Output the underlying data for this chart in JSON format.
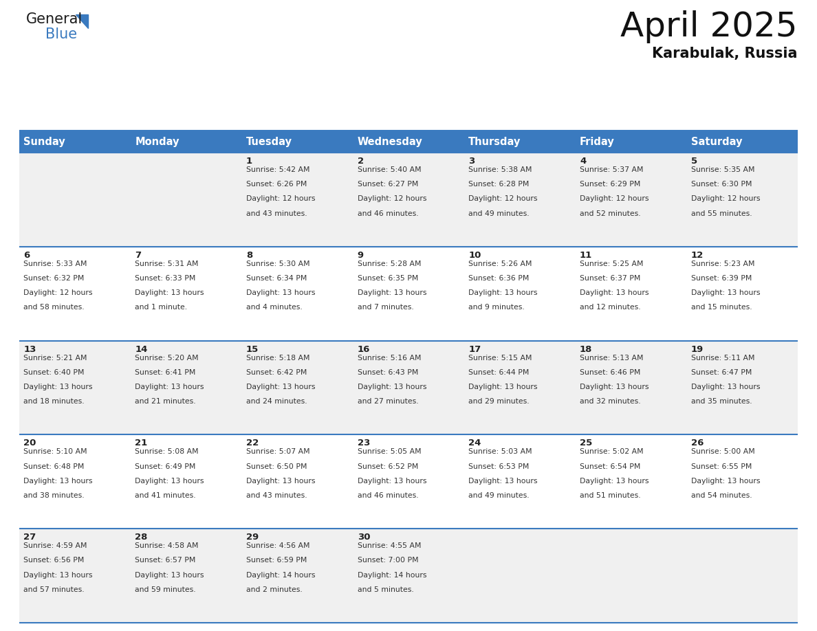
{
  "title": "April 2025",
  "subtitle": "Karabulak, Russia",
  "header_color": "#3a7abf",
  "header_text_color": "#ffffff",
  "cell_bg_odd": "#f0f0f0",
  "cell_bg_even": "#ffffff",
  "day_number_color": "#222222",
  "text_color": "#333333",
  "border_color": "#3a7abf",
  "weekdays": [
    "Sunday",
    "Monday",
    "Tuesday",
    "Wednesday",
    "Thursday",
    "Friday",
    "Saturday"
  ],
  "days": [
    {
      "day": 1,
      "col": 2,
      "row": 0,
      "sunrise": "5:42 AM",
      "sunset": "6:26 PM",
      "daylight_h": "12 hours",
      "daylight_m": "43 minutes."
    },
    {
      "day": 2,
      "col": 3,
      "row": 0,
      "sunrise": "5:40 AM",
      "sunset": "6:27 PM",
      "daylight_h": "12 hours",
      "daylight_m": "46 minutes."
    },
    {
      "day": 3,
      "col": 4,
      "row": 0,
      "sunrise": "5:38 AM",
      "sunset": "6:28 PM",
      "daylight_h": "12 hours",
      "daylight_m": "49 minutes."
    },
    {
      "day": 4,
      "col": 5,
      "row": 0,
      "sunrise": "5:37 AM",
      "sunset": "6:29 PM",
      "daylight_h": "12 hours",
      "daylight_m": "52 minutes."
    },
    {
      "day": 5,
      "col": 6,
      "row": 0,
      "sunrise": "5:35 AM",
      "sunset": "6:30 PM",
      "daylight_h": "12 hours",
      "daylight_m": "55 minutes."
    },
    {
      "day": 6,
      "col": 0,
      "row": 1,
      "sunrise": "5:33 AM",
      "sunset": "6:32 PM",
      "daylight_h": "12 hours",
      "daylight_m": "58 minutes."
    },
    {
      "day": 7,
      "col": 1,
      "row": 1,
      "sunrise": "5:31 AM",
      "sunset": "6:33 PM",
      "daylight_h": "13 hours",
      "daylight_m": "1 minute."
    },
    {
      "day": 8,
      "col": 2,
      "row": 1,
      "sunrise": "5:30 AM",
      "sunset": "6:34 PM",
      "daylight_h": "13 hours",
      "daylight_m": "4 minutes."
    },
    {
      "day": 9,
      "col": 3,
      "row": 1,
      "sunrise": "5:28 AM",
      "sunset": "6:35 PM",
      "daylight_h": "13 hours",
      "daylight_m": "7 minutes."
    },
    {
      "day": 10,
      "col": 4,
      "row": 1,
      "sunrise": "5:26 AM",
      "sunset": "6:36 PM",
      "daylight_h": "13 hours",
      "daylight_m": "9 minutes."
    },
    {
      "day": 11,
      "col": 5,
      "row": 1,
      "sunrise": "5:25 AM",
      "sunset": "6:37 PM",
      "daylight_h": "13 hours",
      "daylight_m": "12 minutes."
    },
    {
      "day": 12,
      "col": 6,
      "row": 1,
      "sunrise": "5:23 AM",
      "sunset": "6:39 PM",
      "daylight_h": "13 hours",
      "daylight_m": "15 minutes."
    },
    {
      "day": 13,
      "col": 0,
      "row": 2,
      "sunrise": "5:21 AM",
      "sunset": "6:40 PM",
      "daylight_h": "13 hours",
      "daylight_m": "18 minutes."
    },
    {
      "day": 14,
      "col": 1,
      "row": 2,
      "sunrise": "5:20 AM",
      "sunset": "6:41 PM",
      "daylight_h": "13 hours",
      "daylight_m": "21 minutes."
    },
    {
      "day": 15,
      "col": 2,
      "row": 2,
      "sunrise": "5:18 AM",
      "sunset": "6:42 PM",
      "daylight_h": "13 hours",
      "daylight_m": "24 minutes."
    },
    {
      "day": 16,
      "col": 3,
      "row": 2,
      "sunrise": "5:16 AM",
      "sunset": "6:43 PM",
      "daylight_h": "13 hours",
      "daylight_m": "27 minutes."
    },
    {
      "day": 17,
      "col": 4,
      "row": 2,
      "sunrise": "5:15 AM",
      "sunset": "6:44 PM",
      "daylight_h": "13 hours",
      "daylight_m": "29 minutes."
    },
    {
      "day": 18,
      "col": 5,
      "row": 2,
      "sunrise": "5:13 AM",
      "sunset": "6:46 PM",
      "daylight_h": "13 hours",
      "daylight_m": "32 minutes."
    },
    {
      "day": 19,
      "col": 6,
      "row": 2,
      "sunrise": "5:11 AM",
      "sunset": "6:47 PM",
      "daylight_h": "13 hours",
      "daylight_m": "35 minutes."
    },
    {
      "day": 20,
      "col": 0,
      "row": 3,
      "sunrise": "5:10 AM",
      "sunset": "6:48 PM",
      "daylight_h": "13 hours",
      "daylight_m": "38 minutes."
    },
    {
      "day": 21,
      "col": 1,
      "row": 3,
      "sunrise": "5:08 AM",
      "sunset": "6:49 PM",
      "daylight_h": "13 hours",
      "daylight_m": "41 minutes."
    },
    {
      "day": 22,
      "col": 2,
      "row": 3,
      "sunrise": "5:07 AM",
      "sunset": "6:50 PM",
      "daylight_h": "13 hours",
      "daylight_m": "43 minutes."
    },
    {
      "day": 23,
      "col": 3,
      "row": 3,
      "sunrise": "5:05 AM",
      "sunset": "6:52 PM",
      "daylight_h": "13 hours",
      "daylight_m": "46 minutes."
    },
    {
      "day": 24,
      "col": 4,
      "row": 3,
      "sunrise": "5:03 AM",
      "sunset": "6:53 PM",
      "daylight_h": "13 hours",
      "daylight_m": "49 minutes."
    },
    {
      "day": 25,
      "col": 5,
      "row": 3,
      "sunrise": "5:02 AM",
      "sunset": "6:54 PM",
      "daylight_h": "13 hours",
      "daylight_m": "51 minutes."
    },
    {
      "day": 26,
      "col": 6,
      "row": 3,
      "sunrise": "5:00 AM",
      "sunset": "6:55 PM",
      "daylight_h": "13 hours",
      "daylight_m": "54 minutes."
    },
    {
      "day": 27,
      "col": 0,
      "row": 4,
      "sunrise": "4:59 AM",
      "sunset": "6:56 PM",
      "daylight_h": "13 hours",
      "daylight_m": "57 minutes."
    },
    {
      "day": 28,
      "col": 1,
      "row": 4,
      "sunrise": "4:58 AM",
      "sunset": "6:57 PM",
      "daylight_h": "13 hours",
      "daylight_m": "59 minutes."
    },
    {
      "day": 29,
      "col": 2,
      "row": 4,
      "sunrise": "4:56 AM",
      "sunset": "6:59 PM",
      "daylight_h": "14 hours",
      "daylight_m": "2 minutes."
    },
    {
      "day": 30,
      "col": 3,
      "row": 4,
      "sunrise": "4:55 AM",
      "sunset": "7:00 PM",
      "daylight_h": "14 hours",
      "daylight_m": "5 minutes."
    }
  ]
}
